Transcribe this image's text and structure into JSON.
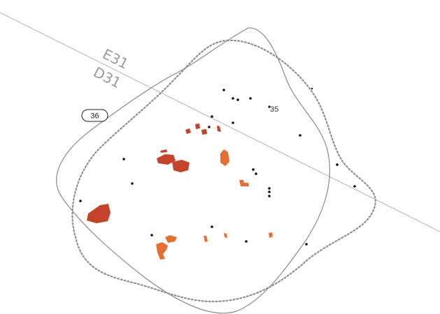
{
  "map": {
    "grid_labels": {
      "upper": "E31",
      "lower": "D31"
    },
    "feature_labels": {
      "badge": "36",
      "point": "35"
    },
    "colors": {
      "background": "#ffffff",
      "grid_line": "#b5b5b5",
      "solid_outline": "#8a8a8a",
      "dotted_outline": "#8f8f8f",
      "dark_fragment": "#c4442a",
      "light_fragment": "#e56f33",
      "point": "#111111",
      "label": "#9a9a9a"
    }
  }
}
